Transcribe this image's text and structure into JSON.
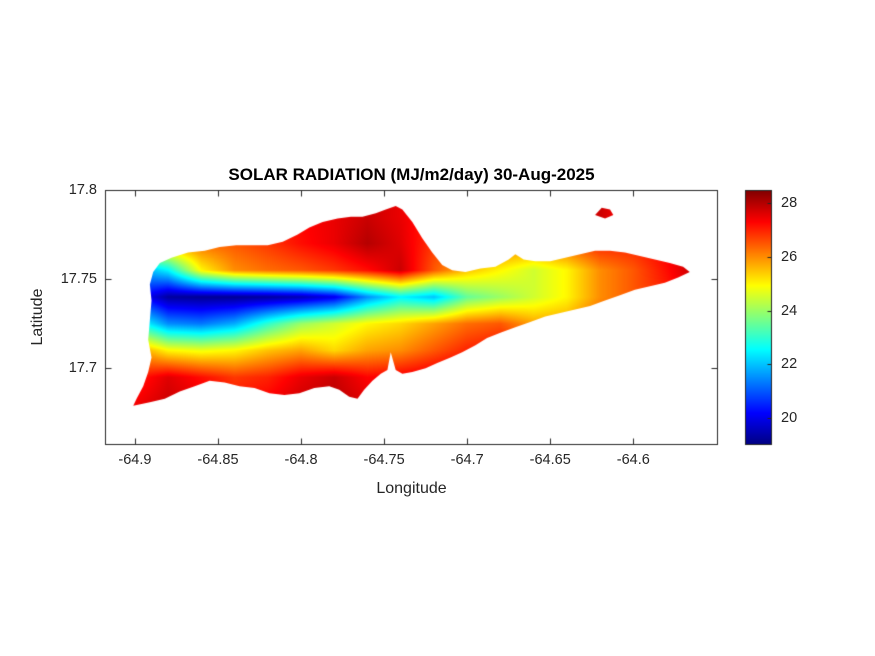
{
  "chart_data": {
    "type": "heatmap",
    "title": "SOLAR RADIATION (MJ/m2/day) 30-Aug-2025",
    "xlabel": "Longitude",
    "ylabel": "Latitude",
    "x_ticks": [
      -64.9,
      -64.85,
      -64.8,
      -64.75,
      -64.7,
      -64.65,
      -64.6
    ],
    "x_tick_labels": [
      "-64.9",
      "-64.85",
      "-64.8",
      "-64.75",
      "-64.7",
      "-64.65",
      "-64.6"
    ],
    "y_ticks": [
      17.8,
      17.75,
      17.7
    ],
    "y_tick_labels": [
      "17.8",
      "17.75",
      "17.7"
    ],
    "xlim": [
      -64.918,
      -64.549
    ],
    "ylim": [
      17.657,
      17.8
    ],
    "grid_on": false,
    "colormap": "jet",
    "clim": [
      19,
      28.5
    ],
    "colorbar_ticks": [
      28,
      26,
      24,
      22,
      20
    ],
    "colorbar_tick_labels": [
      "28",
      "26",
      "24",
      "22",
      "20"
    ],
    "units": "MJ/m2/day",
    "grid_lon": [
      -64.9,
      -64.88,
      -64.86,
      -64.84,
      -64.82,
      -64.8,
      -64.78,
      -64.76,
      -64.74,
      -64.72,
      -64.7,
      -64.68,
      -64.66,
      -64.64,
      -64.62,
      -64.6,
      -64.58,
      -64.56
    ],
    "grid_lat": [
      17.785,
      17.77,
      17.755,
      17.74,
      17.725,
      17.71,
      17.695,
      17.68
    ],
    "values": [
      [
        26.5,
        26.5,
        26.5,
        26.5,
        27.0,
        27.3,
        27.5,
        27.8,
        27.5,
        27.0,
        26.8,
        26.8,
        26.8,
        27.0,
        27.8,
        27.0,
        27.5,
        28.0
      ],
      [
        26.0,
        26.0,
        26.3,
        26.5,
        26.8,
        27.2,
        27.5,
        28.0,
        27.6,
        26.8,
        26.5,
        26.3,
        26.2,
        26.5,
        27.0,
        27.0,
        27.4,
        28.0
      ],
      [
        21.5,
        22.5,
        25.0,
        26.0,
        26.3,
        26.5,
        26.8,
        27.2,
        27.8,
        26.5,
        25.5,
        25.0,
        24.5,
        25.0,
        26.0,
        26.5,
        27.2,
        28.0
      ],
      [
        20.5,
        19.3,
        19.2,
        19.2,
        19.3,
        19.5,
        20.0,
        21.5,
        22.5,
        22.0,
        23.5,
        24.0,
        24.5,
        25.0,
        26.0,
        26.5,
        27.0,
        27.8
      ],
      [
        23.0,
        21.5,
        21.3,
        21.8,
        23.0,
        24.0,
        24.5,
        25.0,
        25.3,
        25.8,
        26.3,
        26.5,
        25.8,
        25.8,
        26.5,
        26.8,
        27.0,
        27.5
      ],
      [
        26.0,
        25.0,
        24.8,
        25.0,
        25.5,
        25.8,
        25.3,
        25.8,
        26.0,
        26.5,
        27.0,
        27.3,
        27.0,
        27.0,
        27.2,
        27.4,
        27.5,
        27.6
      ],
      [
        27.0,
        27.6,
        27.2,
        26.8,
        27.0,
        27.5,
        27.8,
        27.3,
        27.4,
        27.6,
        27.8,
        27.8,
        27.6,
        27.6,
        27.6,
        27.7,
        27.8,
        27.8
      ],
      [
        27.4,
        27.8,
        27.6,
        27.2,
        27.4,
        27.8,
        28.0,
        27.6,
        27.6,
        27.8,
        28.0,
        28.0,
        27.8,
        27.8,
        27.8,
        27.8,
        27.8,
        27.8
      ]
    ],
    "island_outline": [
      [
        -64.901,
        17.679
      ],
      [
        -64.891,
        17.681
      ],
      [
        -64.882,
        17.683
      ],
      [
        -64.873,
        17.687
      ],
      [
        -64.864,
        17.69
      ],
      [
        -64.855,
        17.693
      ],
      [
        -64.846,
        17.692
      ],
      [
        -64.837,
        17.69
      ],
      [
        -64.828,
        17.689
      ],
      [
        -64.819,
        17.686
      ],
      [
        -64.81,
        17.685
      ],
      [
        -64.801,
        17.686
      ],
      [
        -64.792,
        17.689
      ],
      [
        -64.783,
        17.69
      ],
      [
        -64.777,
        17.688
      ],
      [
        -64.771,
        17.684
      ],
      [
        -64.766,
        17.683
      ],
      [
        -64.762,
        17.688
      ],
      [
        -64.757,
        17.693
      ],
      [
        -64.752,
        17.697
      ],
      [
        -64.748,
        17.699
      ],
      [
        -64.746,
        17.709
      ],
      [
        -64.743,
        17.699
      ],
      [
        -64.739,
        17.697
      ],
      [
        -64.733,
        17.698
      ],
      [
        -64.725,
        17.7
      ],
      [
        -64.718,
        17.703
      ],
      [
        -64.71,
        17.706
      ],
      [
        -64.703,
        17.709
      ],
      [
        -64.695,
        17.713
      ],
      [
        -64.688,
        17.717
      ],
      [
        -64.68,
        17.72
      ],
      [
        -64.671,
        17.723
      ],
      [
        -64.662,
        17.726
      ],
      [
        -64.653,
        17.729
      ],
      [
        -64.644,
        17.731
      ],
      [
        -64.635,
        17.733
      ],
      [
        -64.626,
        17.735
      ],
      [
        -64.617,
        17.738
      ],
      [
        -64.608,
        17.741
      ],
      [
        -64.599,
        17.744
      ],
      [
        -64.59,
        17.746
      ],
      [
        -64.581,
        17.748
      ],
      [
        -64.573,
        17.751
      ],
      [
        -64.566,
        17.754
      ],
      [
        -64.57,
        17.757
      ],
      [
        -64.578,
        17.759
      ],
      [
        -64.587,
        17.761
      ],
      [
        -64.596,
        17.763
      ],
      [
        -64.605,
        17.765
      ],
      [
        -64.614,
        17.766
      ],
      [
        -64.623,
        17.766
      ],
      [
        -64.632,
        17.764
      ],
      [
        -64.641,
        17.762
      ],
      [
        -64.65,
        17.76
      ],
      [
        -64.659,
        17.76
      ],
      [
        -64.666,
        17.761
      ],
      [
        -64.671,
        17.764
      ],
      [
        -64.675,
        17.761
      ],
      [
        -64.683,
        17.757
      ],
      [
        -64.692,
        17.756
      ],
      [
        -64.701,
        17.754
      ],
      [
        -64.709,
        17.755
      ],
      [
        -64.715,
        17.758
      ],
      [
        -64.721,
        17.765
      ],
      [
        -64.727,
        17.773
      ],
      [
        -64.733,
        17.782
      ],
      [
        -64.739,
        17.789
      ],
      [
        -64.743,
        17.791
      ],
      [
        -64.749,
        17.789
      ],
      [
        -64.755,
        17.787
      ],
      [
        -64.763,
        17.785
      ],
      [
        -64.77,
        17.785
      ],
      [
        -64.778,
        17.784
      ],
      [
        -64.787,
        17.782
      ],
      [
        -64.795,
        17.779
      ],
      [
        -64.802,
        17.775
      ],
      [
        -64.811,
        17.771
      ],
      [
        -64.82,
        17.769
      ],
      [
        -64.829,
        17.769
      ],
      [
        -64.839,
        17.769
      ],
      [
        -64.849,
        17.768
      ],
      [
        -64.858,
        17.766
      ],
      [
        -64.868,
        17.765
      ],
      [
        -64.878,
        17.762
      ],
      [
        -64.885,
        17.759
      ],
      [
        -64.889,
        17.754
      ],
      [
        -64.891,
        17.747
      ],
      [
        -64.89,
        17.738
      ],
      [
        -64.891,
        17.727
      ],
      [
        -64.892,
        17.716
      ],
      [
        -64.89,
        17.706
      ],
      [
        -64.892,
        17.698
      ],
      [
        -64.895,
        17.69
      ],
      [
        -64.899,
        17.683
      ]
    ],
    "islets": [
      [
        [
          -64.623,
          17.786
        ],
        [
          -64.619,
          17.79
        ],
        [
          -64.614,
          17.789
        ],
        [
          -64.612,
          17.786
        ],
        [
          -64.617,
          17.784
        ]
      ]
    ]
  }
}
